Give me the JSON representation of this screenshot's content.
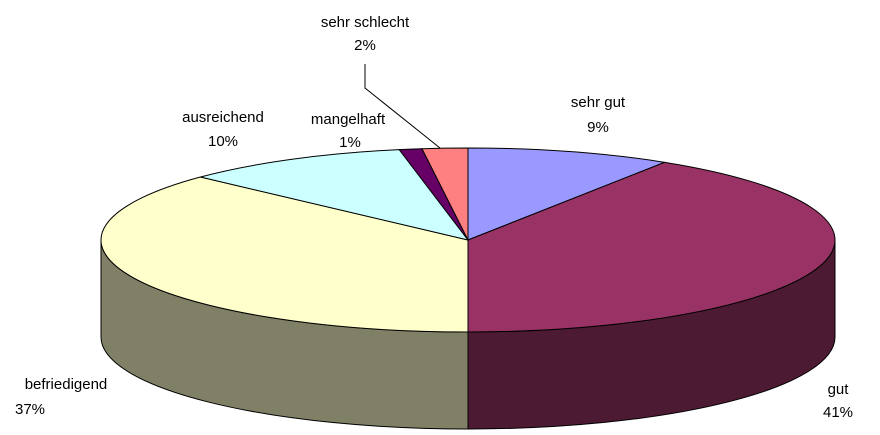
{
  "chart_data": {
    "type": "pie3d",
    "categories": [
      "sehr gut",
      "gut",
      "befriedigend",
      "ausreichend",
      "mangelhaft",
      "sehr schlecht"
    ],
    "values": [
      9,
      41,
      37,
      10,
      1,
      2
    ],
    "value_labels": [
      "9%",
      "41%",
      "37%",
      "10%",
      "1%",
      "2%"
    ],
    "colors": [
      "#9999ff",
      "#993366",
      "#ffffcc",
      "#ccffff",
      "#660066",
      "#ff8080"
    ]
  }
}
